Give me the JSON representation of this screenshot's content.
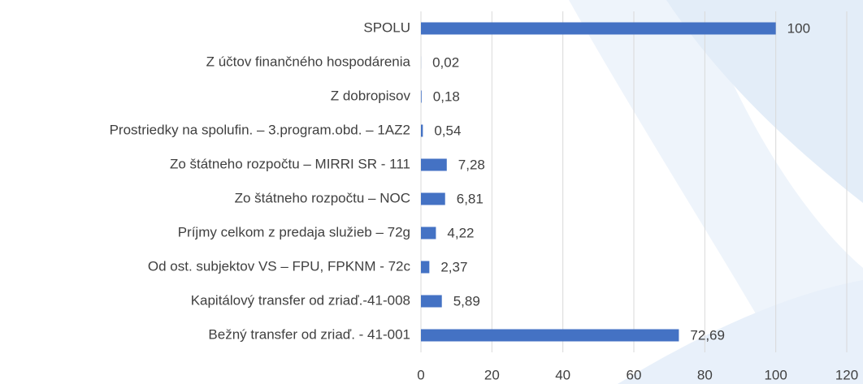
{
  "chart_data": {
    "type": "bar",
    "orientation": "horizontal",
    "categories": [
      "SPOLU",
      "Z účtov finančného hospodárenia",
      "Z dobropisov",
      "Prostriedky na spolufin. – 3.program.obd. – 1AZ2",
      "Zo štátneho rozpočtu – MIRRI SR - 111",
      "Zo štátneho rozpočtu – NOC",
      "Príjmy celkom z predaja služieb – 72g",
      "Od ost. subjektov VS – FPU, FPKNM  - 72c",
      "Kapitálový transfer od zriaď.-41-008",
      "Bežný transfer od zriaď. - 41-001"
    ],
    "values": [
      100,
      0.02,
      0.18,
      0.54,
      7.28,
      6.81,
      4.22,
      2.37,
      5.89,
      72.69
    ],
    "value_labels": [
      "100",
      "0,02",
      "0,18",
      "0,54",
      "7,28",
      "6,81",
      "4,22",
      "2,37",
      "5,89",
      "72,69"
    ],
    "color": "#4472c4",
    "xlim": [
      0,
      120
    ],
    "xticks": [
      0,
      20,
      40,
      60,
      80,
      100,
      120
    ],
    "grid": true
  }
}
